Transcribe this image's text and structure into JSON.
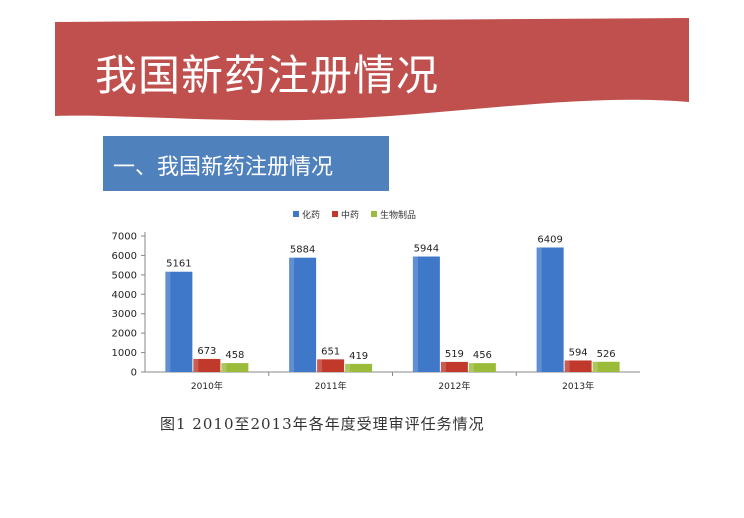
{
  "header": {
    "title": "我国新药注册情况"
  },
  "section": {
    "title": "一、我国新药注册情况"
  },
  "caption": "图1  2010至2013年各年度受理审评任务情况",
  "colors": {
    "banner": "#c0504d",
    "section": "#4f81bd"
  },
  "chart_data": {
    "type": "bar",
    "categories": [
      "2010年",
      "2011年",
      "2012年",
      "2013年"
    ],
    "series": [
      {
        "name": "化药",
        "values": [
          5161,
          5884,
          5944,
          6409
        ],
        "color": "#3f78c8"
      },
      {
        "name": "中药",
        "values": [
          673,
          651,
          519,
          594
        ],
        "color": "#c0392b"
      },
      {
        "name": "生物制品",
        "values": [
          458,
          419,
          456,
          526
        ],
        "color": "#9bbb3b"
      }
    ],
    "yticks": [
      0,
      1000,
      2000,
      3000,
      4000,
      5000,
      6000,
      7000
    ],
    "ylim": [
      0,
      7000
    ],
    "legend_position": "top",
    "grid": false
  }
}
